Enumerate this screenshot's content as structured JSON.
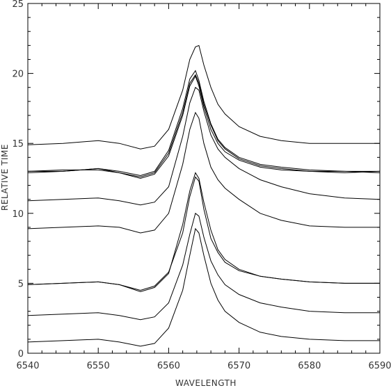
{
  "chart_data": {
    "type": "line",
    "title": "",
    "xlabel": "WAVELENGTH",
    "ylabel": "RELATIVE TIME",
    "xlim": [
      6540,
      6590
    ],
    "ylim": [
      0,
      25
    ],
    "x_ticks": [
      6540,
      6550,
      6560,
      6570,
      6580,
      6590
    ],
    "y_ticks": [
      0,
      5,
      10,
      15,
      20,
      25
    ],
    "grid": false,
    "legend": "none",
    "line_color": "#000000",
    "series": [
      {
        "x": [
          6540,
          6545,
          6550,
          6553,
          6556,
          6558,
          6560,
          6562,
          6563,
          6563.8,
          6564.3,
          6565,
          6566,
          6567,
          6568,
          6570,
          6573,
          6576,
          6580,
          6585,
          6590
        ],
        "y": [
          0.8,
          0.9,
          1.0,
          0.8,
          0.5,
          0.7,
          1.8,
          4.5,
          7.0,
          8.9,
          8.6,
          7.0,
          5.0,
          3.8,
          3.0,
          2.2,
          1.5,
          1.2,
          1.0,
          0.9,
          0.9
        ]
      },
      {
        "x": [
          6540,
          6545,
          6550,
          6553,
          6556,
          6558,
          6560,
          6562,
          6563,
          6563.8,
          6564.3,
          6565,
          6566,
          6567,
          6568,
          6570,
          6573,
          6576,
          6580,
          6585,
          6590
        ],
        "y": [
          2.7,
          2.8,
          2.9,
          2.7,
          2.4,
          2.6,
          3.6,
          6.3,
          8.5,
          10.0,
          9.8,
          8.3,
          6.6,
          5.6,
          4.9,
          4.2,
          3.6,
          3.3,
          3.0,
          2.9,
          2.9
        ]
      },
      {
        "x": [
          6540,
          6545,
          6550,
          6553,
          6556,
          6558,
          6560,
          6562,
          6563,
          6563.8,
          6564.3,
          6565,
          6566,
          6567,
          6568,
          6570,
          6573,
          6576,
          6580,
          6585,
          6590
        ],
        "y": [
          4.9,
          5.0,
          5.1,
          4.9,
          4.5,
          4.8,
          5.8,
          8.6,
          11.2,
          12.6,
          12.3,
          10.3,
          8.2,
          7.2,
          6.5,
          5.9,
          5.5,
          5.3,
          5.1,
          5.0,
          5.0
        ]
      },
      {
        "x": [
          6540,
          6545,
          6550,
          6553,
          6556,
          6558,
          6560,
          6562,
          6563,
          6563.8,
          6564.3,
          6565,
          6566,
          6567,
          6568,
          6570,
          6573,
          6576,
          6580,
          6585,
          6590
        ],
        "y": [
          4.9,
          5.0,
          5.1,
          4.9,
          4.4,
          4.7,
          5.7,
          9.2,
          11.6,
          12.9,
          12.5,
          10.8,
          8.8,
          7.4,
          6.7,
          6.0,
          5.5,
          5.3,
          5.1,
          5.0,
          5.0
        ]
      },
      {
        "x": [
          6540,
          6545,
          6550,
          6553,
          6556,
          6558,
          6560,
          6562,
          6563,
          6563.8,
          6564.3,
          6565,
          6566,
          6567,
          6568,
          6570,
          6573,
          6576,
          6580,
          6585,
          6590
        ],
        "y": [
          8.9,
          9.0,
          9.1,
          9.0,
          8.6,
          8.8,
          10.0,
          13.5,
          16.0,
          17.2,
          16.8,
          15.0,
          13.3,
          12.4,
          11.8,
          11.0,
          10.0,
          9.5,
          9.1,
          9.0,
          9.0
        ]
      },
      {
        "x": [
          6540,
          6545,
          6550,
          6553,
          6556,
          6558,
          6560,
          6562,
          6563,
          6563.8,
          6564.3,
          6565,
          6566,
          6567,
          6568,
          6570,
          6573,
          6576,
          6580,
          6585,
          6590
        ],
        "y": [
          10.9,
          11.0,
          11.1,
          10.9,
          10.6,
          10.8,
          11.9,
          15.5,
          17.9,
          19.0,
          18.8,
          17.3,
          15.6,
          14.6,
          14.0,
          13.2,
          12.4,
          11.9,
          11.4,
          11.1,
          11.0
        ]
      },
      {
        "x": [
          6540,
          6545,
          6550,
          6553,
          6556,
          6558,
          6560,
          6562,
          6563,
          6563.8,
          6564.3,
          6565,
          6566,
          6567,
          6568,
          6570,
          6573,
          6576,
          6580,
          6585,
          6590
        ],
        "y": [
          12.9,
          13.0,
          13.2,
          13.0,
          12.7,
          13.0,
          14.5,
          17.5,
          19.6,
          20.2,
          19.5,
          18.0,
          16.4,
          15.3,
          14.7,
          14.0,
          13.5,
          13.3,
          13.1,
          13.0,
          13.0
        ]
      },
      {
        "x": [
          6540,
          6545,
          6550,
          6553,
          6556,
          6558,
          6560,
          6562,
          6563,
          6563.8,
          6564.3,
          6565,
          6566,
          6567,
          6568,
          6570,
          6573,
          6576,
          6580,
          6585,
          6590
        ],
        "y": [
          13.0,
          13.1,
          13.1,
          12.9,
          12.6,
          12.9,
          14.3,
          17.2,
          19.3,
          19.9,
          19.3,
          17.8,
          16.3,
          15.2,
          14.6,
          13.9,
          13.4,
          13.2,
          13.0,
          13.0,
          12.9
        ]
      },
      {
        "x": [
          6540,
          6545,
          6550,
          6553,
          6556,
          6558,
          6560,
          6562,
          6563,
          6563.8,
          6564.3,
          6565,
          6566,
          6567,
          6568,
          6570,
          6573,
          6576,
          6580,
          6585,
          6590
        ],
        "y": [
          13.0,
          13.0,
          13.2,
          12.9,
          12.5,
          12.8,
          14.1,
          17.0,
          19.1,
          19.8,
          19.1,
          17.6,
          16.0,
          15.0,
          14.4,
          13.8,
          13.3,
          13.1,
          13.0,
          12.9,
          13.0
        ]
      },
      {
        "x": [
          6540,
          6545,
          6550,
          6553,
          6556,
          6558,
          6560,
          6562,
          6563,
          6563.8,
          6564.3,
          6565,
          6566,
          6567,
          6568,
          6570,
          6573,
          6576,
          6580,
          6585,
          6590
        ],
        "y": [
          14.9,
          15.0,
          15.2,
          15.0,
          14.6,
          14.8,
          16.0,
          18.8,
          21.0,
          21.9,
          22.0,
          20.6,
          19.0,
          17.8,
          17.1,
          16.2,
          15.5,
          15.2,
          15.0,
          15.0,
          15.0
        ]
      }
    ]
  }
}
